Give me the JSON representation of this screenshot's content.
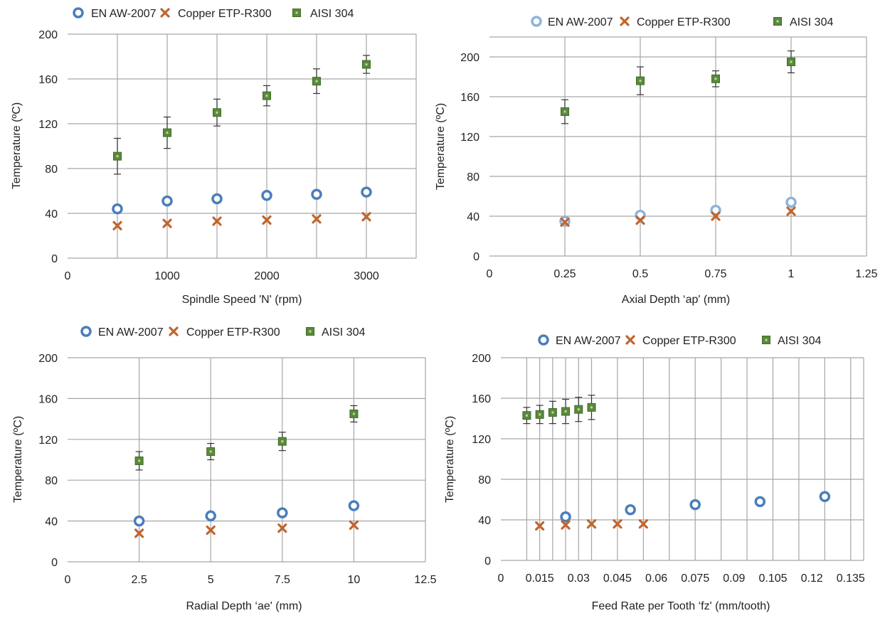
{
  "colors": {
    "en_aw": "#4a7ebb",
    "en_aw_fill_inner": "#ffffff",
    "copper": "#c0652e",
    "aisi": "#5a8a3a",
    "aisi_edge": "#3f6b27",
    "grid": "#a6a6a6"
  },
  "chart_data": [
    {
      "type": "scatter",
      "xlabel": "Spindle Speed 'N' (rpm)",
      "ylabel": "Temperature (ºC)",
      "xlim": [
        0,
        3500
      ],
      "ylim": [
        0,
        200
      ],
      "x_ticks": [
        0,
        1000,
        2000,
        3000
      ],
      "x_tick_labels": [
        "0",
        "1000",
        "2000",
        "3000"
      ],
      "y_ticks": [
        0,
        40,
        80,
        120,
        160,
        200
      ],
      "y_tick_labels": [
        "0",
        "40",
        "80",
        "120",
        "160",
        "200"
      ],
      "x_grid": [
        500,
        1000,
        1500,
        2000,
        2500,
        3000
      ],
      "legend": [
        "EN AW-2007",
        "Copper ETP-R300",
        "AISI 304"
      ],
      "legend_position": "top",
      "series": [
        {
          "name": "EN AW-2007",
          "marker": "circle",
          "x": [
            500,
            1000,
            1500,
            2000,
            2500,
            3000
          ],
          "y": [
            44,
            51,
            53,
            56,
            57,
            59
          ]
        },
        {
          "name": "Copper ETP-R300",
          "marker": "x",
          "x": [
            500,
            1000,
            1500,
            2000,
            2500,
            3000
          ],
          "y": [
            29,
            31,
            33,
            34,
            35,
            37
          ]
        },
        {
          "name": "AISI 304",
          "marker": "square",
          "x": [
            500,
            1000,
            1500,
            2000,
            2500,
            3000
          ],
          "y": [
            91,
            112,
            130,
            145,
            158,
            173
          ],
          "err": [
            16,
            14,
            12,
            9,
            11,
            8
          ]
        }
      ]
    },
    {
      "type": "scatter",
      "xlabel": "Axial Depth ‘ap' (mm)",
      "ylabel": "Temperature (ºC)",
      "xlim": [
        0,
        1.25
      ],
      "ylim": [
        0,
        220
      ],
      "x_ticks": [
        0,
        0.25,
        0.5,
        0.75,
        1,
        1.25
      ],
      "x_tick_labels": [
        "0",
        "0.25",
        "0.5",
        "0.75",
        "1",
        "1.25"
      ],
      "y_ticks": [
        0,
        40,
        80,
        120,
        160,
        200
      ],
      "y_tick_labels": [
        "0",
        "40",
        "80",
        "120",
        "160",
        "200"
      ],
      "x_grid": [
        0.25,
        0.5,
        0.75,
        1
      ],
      "legend": [
        "EN AW-2007",
        "Copper ETP-R300",
        "AISI 304"
      ],
      "legend_position": "top",
      "series": [
        {
          "name": "EN AW-2007",
          "marker": "circle-light",
          "x": [
            0.25,
            0.5,
            0.75,
            1
          ],
          "y": [
            35,
            41,
            46,
            54
          ]
        },
        {
          "name": "Copper ETP-R300",
          "marker": "x",
          "x": [
            0.25,
            0.5,
            0.75,
            1
          ],
          "y": [
            34,
            36,
            40,
            45
          ]
        },
        {
          "name": "AISI 304",
          "marker": "square",
          "x": [
            0.25,
            0.5,
            0.75,
            1
          ],
          "y": [
            145,
            176,
            178,
            195
          ],
          "err": [
            12,
            14,
            8,
            11
          ]
        }
      ]
    },
    {
      "type": "scatter",
      "xlabel": "Radial Depth ‘ae' (mm)",
      "ylabel": "Temperature (ºC)",
      "xlim": [
        0,
        12.5
      ],
      "ylim": [
        0,
        200
      ],
      "x_ticks": [
        0,
        2.5,
        5,
        7.5,
        10,
        12.5
      ],
      "x_tick_labels": [
        "0",
        "2.5",
        "5",
        "7.5",
        "10",
        "12.5"
      ],
      "y_ticks": [
        0,
        40,
        80,
        120,
        160,
        200
      ],
      "y_tick_labels": [
        "0",
        "40",
        "80",
        "120",
        "160",
        "200"
      ],
      "x_grid": [
        2.5,
        5,
        7.5,
        10
      ],
      "legend": [
        "EN AW-2007",
        "Copper ETP-R300",
        "AISI 304"
      ],
      "legend_position": "top",
      "series": [
        {
          "name": "EN AW-2007",
          "marker": "circle",
          "x": [
            2.5,
            5,
            7.5,
            10
          ],
          "y": [
            40,
            45,
            48,
            55
          ]
        },
        {
          "name": "Copper ETP-R300",
          "marker": "x",
          "x": [
            2.5,
            5,
            7.5,
            10
          ],
          "y": [
            28,
            31,
            33,
            36
          ]
        },
        {
          "name": "AISI 304",
          "marker": "square",
          "x": [
            2.5,
            5,
            7.5,
            10
          ],
          "y": [
            99,
            108,
            118,
            145
          ],
          "err": [
            9,
            8,
            9,
            8
          ]
        }
      ]
    },
    {
      "type": "scatter",
      "xlabel": "Feed Rate per Tooth ‘fz' (mm/tooth)",
      "ylabel": "Temperature (ºC)",
      "xlim": [
        0,
        0.14
      ],
      "ylim": [
        0,
        200
      ],
      "x_ticks": [
        0,
        0.015,
        0.03,
        0.045,
        0.06,
        0.075,
        0.09,
        0.105,
        0.12,
        0.135
      ],
      "x_tick_labels": [
        "0",
        "0.015",
        "0.03",
        "0.045",
        "0.06",
        "0.075",
        "0.09",
        "0.105",
        "0.12",
        "0.135"
      ],
      "y_ticks": [
        0,
        40,
        80,
        120,
        160,
        200
      ],
      "y_tick_labels": [
        "0",
        "40",
        "80",
        "120",
        "160",
        "200"
      ],
      "x_grid": [
        0.01,
        0.015,
        0.02,
        0.025,
        0.03,
        0.035,
        0.045,
        0.055,
        0.065,
        0.075,
        0.085,
        0.095,
        0.105,
        0.115,
        0.125,
        0.135
      ],
      "legend": [
        "EN AW-2007",
        "Copper ETP-R300",
        "AISI 304"
      ],
      "legend_position": "top",
      "series": [
        {
          "name": "EN AW-2007",
          "marker": "circle",
          "x": [
            0.025,
            0.05,
            0.075,
            0.1,
            0.125
          ],
          "y": [
            43,
            50,
            55,
            58,
            63
          ]
        },
        {
          "name": "Copper ETP-R300",
          "marker": "x",
          "x": [
            0.015,
            0.025,
            0.035,
            0.045,
            0.055
          ],
          "y": [
            34,
            35,
            36,
            36,
            36
          ]
        },
        {
          "name": "AISI 304",
          "marker": "square",
          "x": [
            0.01,
            0.015,
            0.02,
            0.025,
            0.03,
            0.035
          ],
          "y": [
            143,
            144,
            146,
            147,
            149,
            151
          ],
          "err": [
            8,
            9,
            11,
            12,
            12,
            12
          ]
        }
      ]
    }
  ]
}
